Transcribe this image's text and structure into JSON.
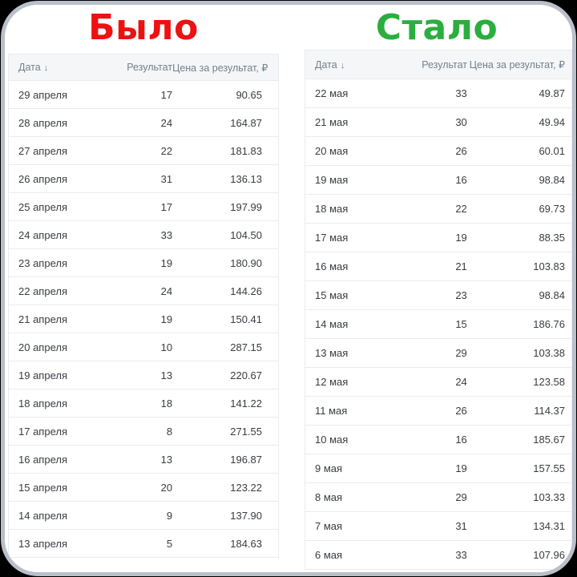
{
  "page": {
    "background_color": "#000000",
    "card_border_color": "#b9c0c9",
    "header_bg_color": "#f5f6f7",
    "header_text_color": "#72808f",
    "cell_text_color": "#383c41",
    "divider_color": "#e9ebee"
  },
  "comparison": {
    "before_label": "Было",
    "before_color": "#ee1111",
    "after_label": "Стало",
    "after_color": "#2bae3f"
  },
  "table_headers": {
    "date": "Дата",
    "sort_icon": "↓",
    "result": "Результат",
    "price": "Цена за результат, ₽"
  },
  "tables": [
    {
      "name": "before",
      "rows": [
        [
          "29 апреля",
          "17",
          "90.65"
        ],
        [
          "28 апреля",
          "24",
          "164.87"
        ],
        [
          "27 апреля",
          "22",
          "181.83"
        ],
        [
          "26 апреля",
          "31",
          "136.13"
        ],
        [
          "25 апреля",
          "17",
          "197.99"
        ],
        [
          "24 апреля",
          "33",
          "104.50"
        ],
        [
          "23 апреля",
          "19",
          "180.90"
        ],
        [
          "22 апреля",
          "24",
          "144.26"
        ],
        [
          "21 апреля",
          "19",
          "150.41"
        ],
        [
          "20 апреля",
          "10",
          "287.15"
        ],
        [
          "19 апреля",
          "13",
          "220.67"
        ],
        [
          "18 апреля",
          "18",
          "141.22"
        ],
        [
          "17 апреля",
          "8",
          "271.55"
        ],
        [
          "16 апреля",
          "13",
          "196.87"
        ],
        [
          "15 апреля",
          "20",
          "123.22"
        ],
        [
          "14 апреля",
          "9",
          "137.90"
        ],
        [
          "13 апреля",
          "5",
          "184.63"
        ]
      ]
    },
    {
      "name": "after",
      "rows": [
        [
          "22 мая",
          "33",
          "49.87"
        ],
        [
          "21 мая",
          "30",
          "49.94"
        ],
        [
          "20 мая",
          "26",
          "60.01"
        ],
        [
          "19 мая",
          "16",
          "98.84"
        ],
        [
          "18 мая",
          "22",
          "69.73"
        ],
        [
          "17 мая",
          "19",
          "88.35"
        ],
        [
          "16 мая",
          "21",
          "103.83"
        ],
        [
          "15 мая",
          "23",
          "98.84"
        ],
        [
          "14 мая",
          "15",
          "186.76"
        ],
        [
          "13 мая",
          "29",
          "103.38"
        ],
        [
          "12 мая",
          "24",
          "123.58"
        ],
        [
          "11 мая",
          "26",
          "114.37"
        ],
        [
          "10 мая",
          "16",
          "185.67"
        ],
        [
          "9 мая",
          "19",
          "157.55"
        ],
        [
          "8 мая",
          "29",
          "103.33"
        ],
        [
          "7 мая",
          "31",
          "134.31"
        ],
        [
          "6 мая",
          "33",
          "107.96"
        ]
      ]
    }
  ]
}
